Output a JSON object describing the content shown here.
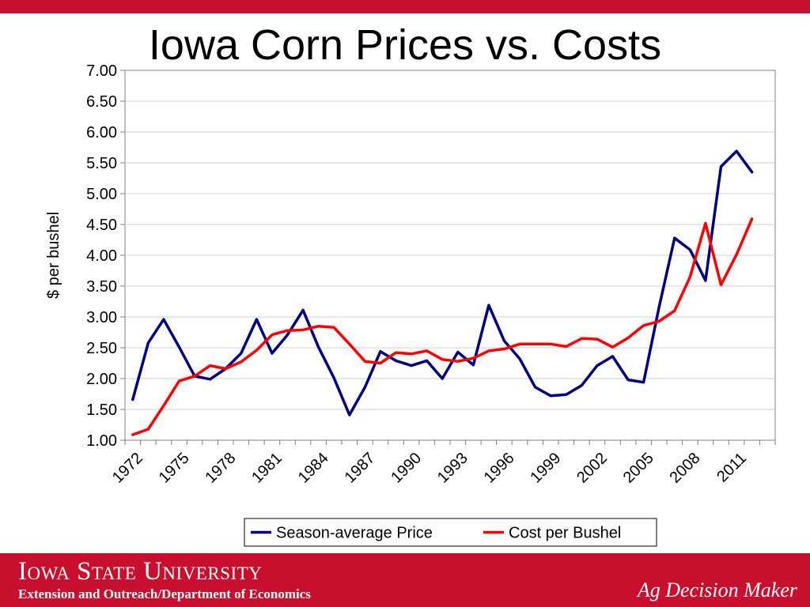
{
  "slide": {
    "title": "Iowa Corn Prices vs. Costs"
  },
  "footer": {
    "university": "Iowa State University",
    "department": "Extension and Outreach/Department of Economics",
    "brand": "Ag Decision Maker"
  },
  "colors": {
    "brand_red": "#c8102e",
    "price_line": "#000080",
    "cost_line": "#ff0000"
  },
  "chart_data": {
    "type": "line",
    "ylabel": "$ per bushel",
    "ylim": [
      1.0,
      7.0
    ],
    "yticks": [
      "1.00",
      "1.50",
      "2.00",
      "2.50",
      "3.00",
      "3.50",
      "4.00",
      "4.50",
      "5.00",
      "5.50",
      "6.00",
      "6.50",
      "7.00"
    ],
    "x": [
      1972,
      1973,
      1974,
      1975,
      1976,
      1977,
      1978,
      1979,
      1980,
      1981,
      1982,
      1983,
      1984,
      1985,
      1986,
      1987,
      1988,
      1989,
      1990,
      1991,
      1992,
      1993,
      1994,
      1995,
      1996,
      1997,
      1998,
      1999,
      2000,
      2001,
      2002,
      2003,
      2004,
      2005,
      2006,
      2007,
      2008,
      2009,
      2010,
      2011,
      2012,
      2013
    ],
    "xtick_labels": [
      "1972",
      "1975",
      "1978",
      "1981",
      "1984",
      "1987",
      "1990",
      "1993",
      "1996",
      "1999",
      "2002",
      "2005",
      "2008",
      "2011"
    ],
    "grid": true,
    "legend_position": "bottom",
    "series": [
      {
        "name": "Season-average Price",
        "color": "#000080",
        "values": [
          1.66,
          2.58,
          2.96,
          2.51,
          2.04,
          1.99,
          2.16,
          2.41,
          2.96,
          2.41,
          2.71,
          3.11,
          2.51,
          2.01,
          1.41,
          1.86,
          2.44,
          2.29,
          2.21,
          2.29,
          2.0,
          2.43,
          2.22,
          3.19,
          2.61,
          2.32,
          1.86,
          1.72,
          1.74,
          1.89,
          2.21,
          2.36,
          1.98,
          1.94,
          3.16,
          4.28,
          4.09,
          3.59,
          5.44,
          5.69,
          5.35,
          null
        ]
      },
      {
        "name": "Cost per Bushel",
        "color": "#ff0000",
        "values": [
          1.09,
          1.18,
          1.56,
          1.96,
          2.04,
          2.21,
          2.16,
          2.27,
          2.46,
          2.71,
          2.78,
          2.79,
          2.85,
          2.83,
          2.56,
          2.28,
          2.25,
          2.42,
          2.4,
          2.45,
          2.31,
          2.28,
          2.33,
          2.45,
          2.48,
          2.56,
          2.56,
          2.56,
          2.52,
          2.65,
          2.64,
          2.51,
          2.66,
          2.86,
          2.93,
          3.1,
          3.65,
          4.52,
          3.52,
          4.01,
          4.59,
          null
        ]
      }
    ]
  }
}
